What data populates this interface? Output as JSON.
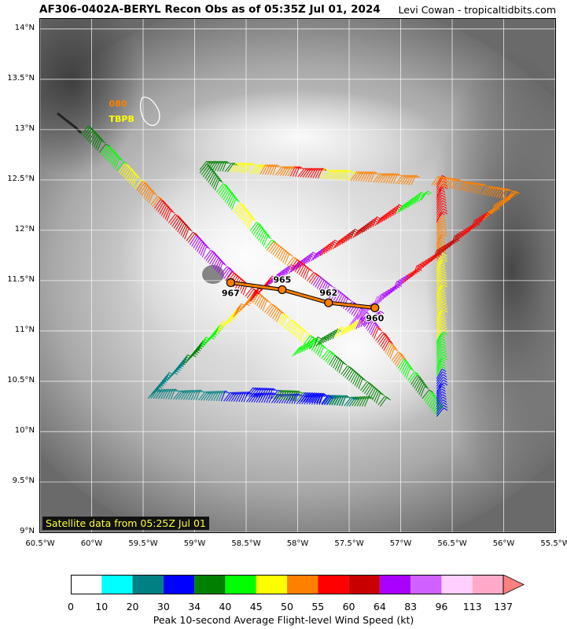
{
  "header": {
    "title": "AF306-0402A-BERYL Recon Obs as of 05:35Z Jul 01, 2024",
    "credit": "Levi Cowan - tropicaltidbits.com"
  },
  "map": {
    "lon_range": [
      -60.5,
      -55.5
    ],
    "lat_range": [
      9.0,
      14.1
    ],
    "lat_ticks": [
      "14°N",
      "13.5°N",
      "13°N",
      "12.5°N",
      "12°N",
      "11.5°N",
      "11°N",
      "10.5°N",
      "10°N",
      "9.5°N",
      "9°N"
    ],
    "lat_values": [
      14.0,
      13.5,
      13.0,
      12.5,
      12.0,
      11.5,
      11.0,
      10.5,
      10.0,
      9.5,
      9.0
    ],
    "lon_ticks": [
      "60.5°W",
      "60°W",
      "59.5°W",
      "59°W",
      "58.5°W",
      "58°W",
      "57.5°W",
      "57°W",
      "56.5°W",
      "56°W",
      "55.5°W"
    ],
    "lon_values": [
      -60.5,
      -60.0,
      -59.5,
      -59.0,
      -58.5,
      -58.0,
      -57.5,
      -57.0,
      -56.5,
      -56.0,
      -55.5
    ],
    "grid": true,
    "satellite_label": "Satellite data from 05:25Z Jul 01",
    "stations": [
      {
        "label": "080",
        "color": "#ff7f00",
        "lon": -60.0,
        "lat": 13.15
      },
      {
        "label": "TBPB",
        "color": "#ffff00",
        "lon": -60.0,
        "lat": 13.0
      }
    ],
    "pressure_track": {
      "color": "#ff8000",
      "points": [
        {
          "lon": -58.65,
          "lat": 11.48,
          "label": "967"
        },
        {
          "lon": -58.15,
          "lat": 11.41,
          "label": "965"
        },
        {
          "lon": -57.7,
          "lat": 11.28,
          "label": "962"
        },
        {
          "lon": -57.25,
          "lat": 11.23,
          "label": "960"
        }
      ]
    },
    "flight_legs": [
      {
        "from": [
          -60.1,
          12.95
        ],
        "to": [
          -58.7,
          11.5
        ],
        "colors": [
          "#008000",
          "#00ff00",
          "#ffff00",
          "#ff8000",
          "#ff0000",
          "#c80000",
          "#aa00ff",
          "#aa00ff"
        ]
      },
      {
        "from": [
          -58.7,
          11.5
        ],
        "to": [
          -57.2,
          10.25
        ],
        "colors": [
          "#ff0000",
          "#ff8000",
          "#ffff00",
          "#00ff00",
          "#008000",
          "#008000"
        ]
      },
      {
        "from": [
          -59.45,
          10.33
        ],
        "to": [
          -58.3,
          11.45
        ],
        "colors": [
          "#008080",
          "#008080",
          "#008000",
          "#00ff00",
          "#ffff00",
          "#ff8000",
          "#ff0000"
        ]
      },
      {
        "from": [
          -58.3,
          11.45
        ],
        "to": [
          -56.8,
          12.3
        ],
        "colors": [
          "#aa00ff",
          "#aa00ff",
          "#ff0000",
          "#c80000",
          "#ff0000",
          "#00ff00"
        ]
      },
      {
        "from": [
          -59.45,
          10.33
        ],
        "to": [
          -57.35,
          10.25
        ],
        "colors": [
          "#008080",
          "#008080",
          "#0000ff",
          "#0000ff",
          "#0000ff",
          "#008000"
        ]
      },
      {
        "from": [
          -58.95,
          12.57
        ],
        "to": [
          -58.3,
          11.8
        ],
        "colors": [
          "#008000",
          "#00ff00",
          "#ffff00",
          "#00ff00"
        ]
      },
      {
        "from": [
          -58.95,
          12.6
        ],
        "to": [
          -56.9,
          12.45
        ],
        "colors": [
          "#008000",
          "#ffff00",
          "#ff8000",
          "#ff0000",
          "#ffff00",
          "#ff8000",
          "#ff8000"
        ]
      },
      {
        "from": [
          -58.3,
          11.8
        ],
        "to": [
          -57.4,
          11.1
        ],
        "colors": [
          "#ff8000",
          "#ff0000",
          "#aa00ff",
          "#aa00ff"
        ]
      },
      {
        "from": [
          -57.4,
          11.1
        ],
        "to": [
          -56.65,
          10.15
        ],
        "colors": [
          "#aa00ff",
          "#ff0000",
          "#ff8000",
          "#00ff00",
          "#008000",
          "#00ff00"
        ]
      },
      {
        "from": [
          -56.65,
          10.15
        ],
        "to": [
          -56.65,
          12.45
        ],
        "colors": [
          "#0000ff",
          "#00ff00",
          "#ffff00",
          "#ffff00",
          "#ff8000",
          "#ff0000"
        ]
      },
      {
        "from": [
          -56.7,
          12.45
        ],
        "to": [
          -55.95,
          12.3
        ],
        "colors": [
          "#ff8000",
          "#ff8000",
          "#ff8000"
        ]
      },
      {
        "from": [
          -55.95,
          12.3
        ],
        "to": [
          -57.5,
          11.05
        ],
        "colors": [
          "#ff8000",
          "#ff0000",
          "#c80000",
          "#ff0000",
          "#aa00ff",
          "#d060ff"
        ]
      },
      {
        "from": [
          -58.05,
          10.75
        ],
        "to": [
          -57.25,
          11.1
        ],
        "colors": [
          "#00ff00",
          "#008000",
          "#ffff00",
          "#aa00ff"
        ]
      },
      {
        "from": [
          -58.5,
          10.35
        ],
        "to": [
          -57.5,
          10.25
        ],
        "colors": [
          "#0000ff",
          "#008000",
          "#0000ff",
          "#008080"
        ]
      }
    ]
  },
  "colorbar": {
    "tick_labels": [
      "0",
      "10",
      "20",
      "30",
      "34",
      "40",
      "45",
      "50",
      "55",
      "60",
      "64",
      "83",
      "96",
      "113",
      "137"
    ],
    "colors": [
      "#ffffff",
      "#00ffff",
      "#008080",
      "#0000ff",
      "#008000",
      "#00ff00",
      "#ffff00",
      "#ff8000",
      "#ff0000",
      "#c80000",
      "#aa00ff",
      "#d060ff",
      "#ffd0ff",
      "#ffaac8"
    ],
    "extend_color": "#ff8080",
    "label": "Peak 10-second Average Flight-level Wind Speed (kt)"
  }
}
